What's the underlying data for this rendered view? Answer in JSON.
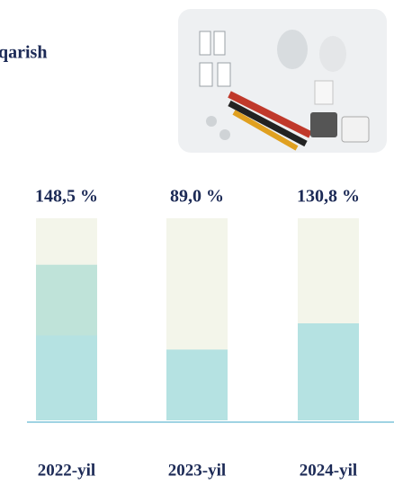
{
  "chart_data": {
    "type": "stacked-bar",
    "title": "qarish",
    "categories": [
      "2022-yil",
      "2023-yil",
      "2024-yil"
    ],
    "annotations": [
      "148,5 %",
      "89,0 %",
      "130,8 %"
    ],
    "ylim": [
      0,
      100
    ],
    "track_color": "#f3f5ea",
    "series": [
      {
        "color": "#b5e2e2",
        "values": [
          42,
          35,
          48
        ]
      },
      {
        "color": "#bfe3d9",
        "values": [
          35,
          null,
          null
        ]
      }
    ]
  }
}
